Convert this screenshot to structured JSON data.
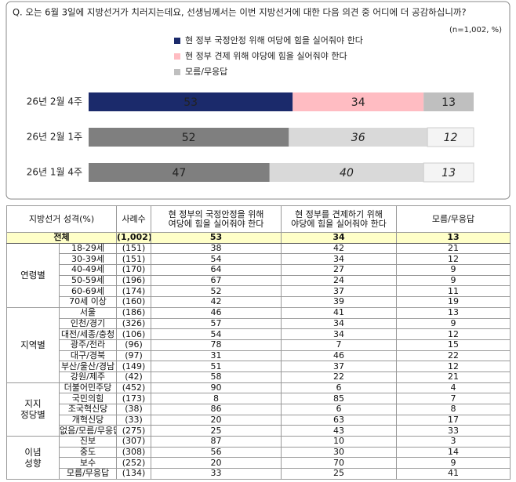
{
  "chart_data": {
    "type": "stacked-bar",
    "title": "Q. 오는 6월 3일에 지방선거가 치러지는데요, 선생님께서는 이번 지방선거에 대한 다음 의견 중 어디에 더 공감하십니까?",
    "note": "(n=1,002, %)",
    "categories": [
      "26년 2월 4주",
      "26년 2월 1주",
      "26년 1월 4주"
    ],
    "xlim": [
      0,
      100
    ],
    "series": [
      {
        "name": "현 정부 국정안정 위해 여당에 힘을 실어줘야 한다",
        "color": "#1b2a6b",
        "colors": [
          "#1b2a6b",
          "#7f7f7f",
          "#7f7f7f"
        ],
        "values": [
          53,
          52,
          47
        ]
      },
      {
        "name": "현 정부 견제 위해 야당에 힘을 실어줘야 한다",
        "color": "#ffbcc2",
        "colors": [
          "#ffbcc2",
          "#d9d9d9",
          "#d9d9d9"
        ],
        "values": [
          34,
          36,
          40
        ]
      },
      {
        "name": "모름/무응답",
        "color": "#bfbfbf",
        "colors": [
          "#bfbfbf",
          "#f4f4f4",
          "#f4f4f4"
        ],
        "values": [
          13,
          12,
          13
        ]
      }
    ]
  },
  "table": {
    "header": [
      [
        "지방선거 성격(%)"
      ],
      [
        "사례수"
      ],
      [
        "현 정부의 국정안정을 위해",
        "여당에 힘을 실어줘야 한다"
      ],
      [
        "현 정부를 견제하기 위해",
        "야당에 힘을 실어줘야 한다"
      ],
      [
        "모름/무응답"
      ]
    ],
    "total": [
      "전체",
      "(1,002)",
      53,
      34,
      13
    ],
    "groups": [
      {
        "label": [
          "연령별"
        ],
        "rows": [
          [
            "18-29세",
            "(151)",
            38,
            42,
            21
          ],
          [
            "30-39세",
            "(151)",
            54,
            34,
            12
          ],
          [
            "40-49세",
            "(170)",
            64,
            27,
            9
          ],
          [
            "50-59세",
            "(196)",
            67,
            24,
            9
          ],
          [
            "60-69세",
            "(174)",
            52,
            37,
            11
          ],
          [
            "70세 이상",
            "(160)",
            42,
            39,
            19
          ]
        ]
      },
      {
        "label": [
          "지역별"
        ],
        "rows": [
          [
            "서울",
            "(186)",
            46,
            41,
            13
          ],
          [
            "인천/경기",
            "(326)",
            57,
            34,
            9
          ],
          [
            "대전/세종/충청",
            "(106)",
            54,
            34,
            12
          ],
          [
            "광주/전라",
            "(96)",
            78,
            7,
            15
          ],
          [
            "대구/경북",
            "(97)",
            31,
            46,
            22
          ],
          [
            "부산/울산/경남",
            "(149)",
            51,
            37,
            12
          ],
          [
            "강원/제주",
            "(42)",
            58,
            22,
            21
          ]
        ]
      },
      {
        "label": [
          "지지",
          "정당별"
        ],
        "rows": [
          [
            "더불어민주당",
            "(452)",
            90,
            6,
            4
          ],
          [
            "국민의힘",
            "(173)",
            8,
            85,
            7
          ],
          [
            "조국혁신당",
            "(38)",
            86,
            6,
            8
          ],
          [
            "개혁신당",
            "(33)",
            20,
            63,
            17
          ],
          [
            "없음/모름/무응답",
            "(275)",
            25,
            43,
            33
          ]
        ]
      },
      {
        "label": [
          "이념",
          "성향"
        ],
        "rows": [
          [
            "진보",
            "(307)",
            87,
            10,
            3
          ],
          [
            "중도",
            "(308)",
            56,
            30,
            14
          ],
          [
            "보수",
            "(252)",
            20,
            70,
            9
          ],
          [
            "모름/무응답",
            "(134)",
            33,
            25,
            41
          ]
        ]
      }
    ]
  }
}
